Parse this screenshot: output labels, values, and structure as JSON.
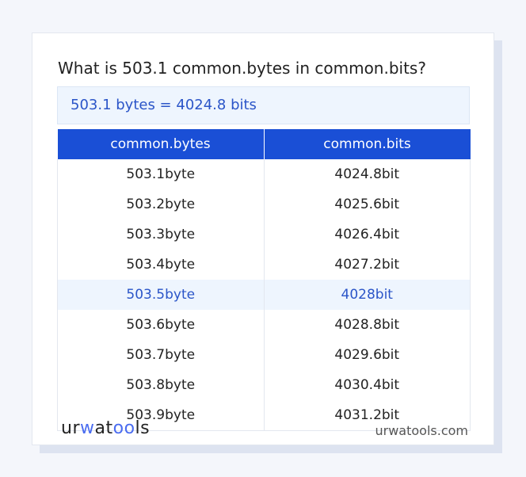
{
  "title": "What is 503.1 common.bytes in common.bits?",
  "result": "503.1 bytes = 4024.8 bits",
  "table": {
    "headers": [
      "common.bytes",
      "common.bits"
    ],
    "rows": [
      [
        "503.1byte",
        "4024.8bit"
      ],
      [
        "503.2byte",
        "4025.6bit"
      ],
      [
        "503.3byte",
        "4026.4bit"
      ],
      [
        "503.4byte",
        "4027.2bit"
      ],
      [
        "503.5byte",
        "4028bit"
      ],
      [
        "503.6byte",
        "4028.8bit"
      ],
      [
        "503.7byte",
        "4029.6bit"
      ],
      [
        "503.8byte",
        "4030.4bit"
      ],
      [
        "503.9byte",
        "4031.2bit"
      ]
    ],
    "highlighted_row": 4
  },
  "footer": {
    "logo": "urwatools",
    "site": "urwatools.com"
  },
  "colors": {
    "accent": "#1a4fd6",
    "highlight_text": "#2b55c8"
  }
}
